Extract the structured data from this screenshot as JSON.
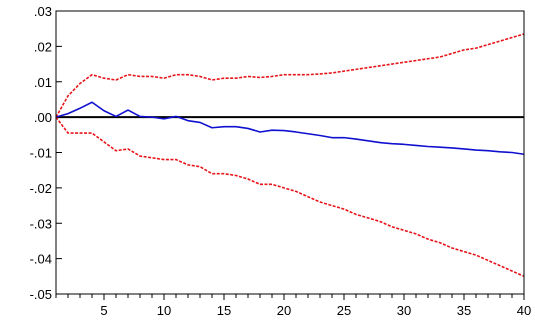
{
  "chart_data": {
    "type": "line",
    "title": "",
    "xlabel": "",
    "ylabel": "",
    "xlim": [
      1,
      40
    ],
    "ylim": [
      -0.05,
      0.03
    ],
    "x_ticks": [
      5,
      10,
      15,
      20,
      25,
      30,
      35,
      40
    ],
    "x_tick_labels": [
      "5",
      "10",
      "15",
      "20",
      "25",
      "30",
      "35",
      "40"
    ],
    "y_ticks": [
      0.03,
      0.02,
      0.01,
      0.0,
      -0.01,
      -0.02,
      -0.03,
      -0.04,
      -0.05
    ],
    "y_tick_labels": [
      ".03",
      ".02",
      ".01",
      ".00",
      "-.01",
      "-.02",
      "-.03",
      "-.04",
      "-.05"
    ],
    "grid": false,
    "zero_line": true,
    "x": [
      1,
      2,
      3,
      4,
      5,
      6,
      7,
      8,
      9,
      10,
      11,
      12,
      13,
      14,
      15,
      16,
      17,
      18,
      19,
      20,
      21,
      22,
      23,
      24,
      25,
      26,
      27,
      28,
      29,
      30,
      31,
      32,
      33,
      34,
      35,
      36,
      37,
      38,
      39,
      40
    ],
    "series": [
      {
        "role": "upper-band",
        "color": "#e8141a",
        "style": "dashed",
        "values": [
          0.0,
          0.006,
          0.0095,
          0.012,
          0.011,
          0.0105,
          0.012,
          0.0115,
          0.0115,
          0.011,
          0.012,
          0.012,
          0.0115,
          0.0105,
          0.011,
          0.011,
          0.0115,
          0.0112,
          0.0115,
          0.012,
          0.012,
          0.012,
          0.0122,
          0.0125,
          0.013,
          0.0135,
          0.014,
          0.0145,
          0.015,
          0.0155,
          0.016,
          0.0165,
          0.017,
          0.018,
          0.019,
          0.0195,
          0.0205,
          0.0215,
          0.0225,
          0.0235
        ]
      },
      {
        "role": "response",
        "color": "#1010d0",
        "style": "solid",
        "values": [
          0.0,
          0.001,
          0.0025,
          0.0042,
          0.0018,
          0.0002,
          0.002,
          0.0002,
          0.0,
          -0.0005,
          0.0002,
          -0.001,
          -0.0015,
          -0.003,
          -0.0027,
          -0.0027,
          -0.0032,
          -0.0042,
          -0.0037,
          -0.0038,
          -0.0042,
          -0.0047,
          -0.0052,
          -0.0058,
          -0.0058,
          -0.0062,
          -0.0067,
          -0.0072,
          -0.0075,
          -0.0077,
          -0.008,
          -0.0083,
          -0.0085,
          -0.0087,
          -0.009,
          -0.0093,
          -0.0095,
          -0.0098,
          -0.01,
          -0.0105
        ]
      },
      {
        "role": "lower-band",
        "color": "#e8141a",
        "style": "dashed",
        "values": [
          0.0,
          -0.0045,
          -0.0045,
          -0.0045,
          -0.007,
          -0.0095,
          -0.009,
          -0.011,
          -0.0115,
          -0.012,
          -0.012,
          -0.0135,
          -0.014,
          -0.016,
          -0.016,
          -0.0165,
          -0.0175,
          -0.019,
          -0.019,
          -0.02,
          -0.021,
          -0.0225,
          -0.024,
          -0.025,
          -0.026,
          -0.0275,
          -0.0285,
          -0.0295,
          -0.031,
          -0.032,
          -0.033,
          -0.0345,
          -0.0355,
          -0.037,
          -0.038,
          -0.039,
          -0.0405,
          -0.042,
          -0.0435,
          -0.045
        ]
      }
    ]
  }
}
